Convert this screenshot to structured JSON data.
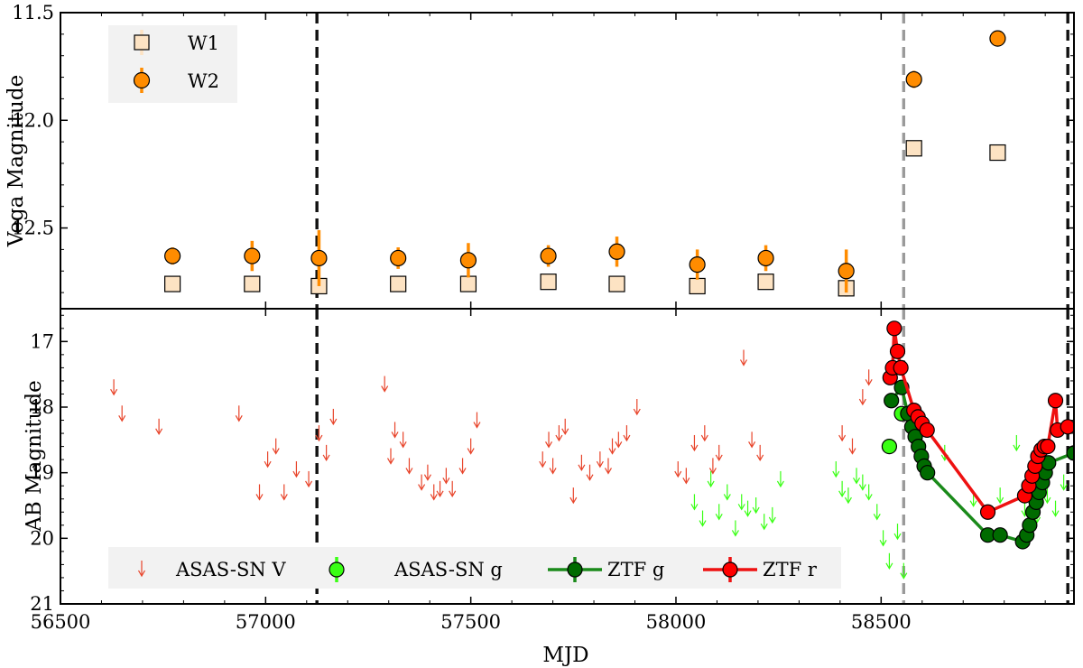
{
  "chart_data": [
    {
      "type": "scatter",
      "panel": "top",
      "ylabel": "Vega Magnitude",
      "xlim": [
        56500,
        58970
      ],
      "ylim": [
        12.875,
        11.5
      ],
      "y_inverted": true,
      "yticks": [
        11.5,
        12.0,
        12.5
      ],
      "ytick_labels": [
        "11.5",
        "12.0",
        "12.5"
      ],
      "legend_position": "top-left",
      "series": [
        {
          "name": "W1",
          "marker": "square",
          "color": "#fde3c3",
          "errcolor": "#fde3c3",
          "points": [
            {
              "x": 56773,
              "y": 12.76,
              "err": 0.02
            },
            {
              "x": 56967,
              "y": 12.76,
              "err": 0.02
            },
            {
              "x": 57130,
              "y": 12.77,
              "err": 0.03
            },
            {
              "x": 57323,
              "y": 12.76,
              "err": 0.03
            },
            {
              "x": 57494,
              "y": 12.76,
              "err": 0.02
            },
            {
              "x": 57689,
              "y": 12.75,
              "err": 0.02
            },
            {
              "x": 57856,
              "y": 12.76,
              "err": 0.03
            },
            {
              "x": 58052,
              "y": 12.77,
              "err": 0.02
            },
            {
              "x": 58219,
              "y": 12.75,
              "err": 0.02
            },
            {
              "x": 58415,
              "y": 12.78,
              "err": 0.04
            },
            {
              "x": 58580,
              "y": 12.13,
              "err": 0.02
            },
            {
              "x": 58784,
              "y": 12.15,
              "err": 0.03
            }
          ]
        },
        {
          "name": "W2",
          "marker": "circle",
          "color": "#ff8c00",
          "errcolor": "#ff8c00",
          "points": [
            {
              "x": 56773,
              "y": 12.63,
              "err": 0.04
            },
            {
              "x": 56967,
              "y": 12.63,
              "err": 0.07
            },
            {
              "x": 57130,
              "y": 12.64,
              "err": 0.13
            },
            {
              "x": 57323,
              "y": 12.64,
              "err": 0.05
            },
            {
              "x": 57494,
              "y": 12.65,
              "err": 0.08
            },
            {
              "x": 57689,
              "y": 12.63,
              "err": 0.05
            },
            {
              "x": 57856,
              "y": 12.61,
              "err": 0.07
            },
            {
              "x": 58052,
              "y": 12.67,
              "err": 0.07
            },
            {
              "x": 58219,
              "y": 12.64,
              "err": 0.06
            },
            {
              "x": 58415,
              "y": 12.7,
              "err": 0.1
            },
            {
              "x": 58580,
              "y": 11.81,
              "err": 0.04
            },
            {
              "x": 58784,
              "y": 11.62,
              "err": 0.02
            }
          ]
        }
      ]
    },
    {
      "type": "scatter",
      "panel": "bottom",
      "xlabel": "MJD",
      "ylabel": "AB Magnitude",
      "xlim": [
        56500,
        58970
      ],
      "ylim": [
        21.0,
        16.5
      ],
      "y_inverted": true,
      "xticks": [
        56500,
        57000,
        57500,
        58000,
        58500
      ],
      "xtick_labels": [
        "56500",
        "57000",
        "57500",
        "58000",
        "58500"
      ],
      "yticks": [
        17,
        18,
        19,
        20,
        21
      ],
      "ytick_labels": [
        "17",
        "18",
        "19",
        "20",
        "21"
      ],
      "legend_position": "bottom",
      "series": [
        {
          "name": "ASAS-SN V",
          "marker": "down-arrow (upper limit)",
          "color": "#e8442a",
          "points": [
            [
              56630,
              17.7
            ],
            [
              56650,
              18.1
            ],
            [
              56740,
              18.3
            ],
            [
              56935,
              18.1
            ],
            [
              56985,
              19.3
            ],
            [
              57005,
              18.8
            ],
            [
              57025,
              18.6
            ],
            [
              57045,
              19.3
            ],
            [
              57075,
              18.95
            ],
            [
              57105,
              19.1
            ],
            [
              57130,
              18.4
            ],
            [
              57148,
              18.7
            ],
            [
              57165,
              18.15
            ],
            [
              57290,
              17.65
            ],
            [
              57305,
              18.75
            ],
            [
              57315,
              18.35
            ],
            [
              57335,
              18.5
            ],
            [
              57350,
              18.9
            ],
            [
              57380,
              19.15
            ],
            [
              57395,
              19.0
            ],
            [
              57410,
              19.3
            ],
            [
              57425,
              19.25
            ],
            [
              57440,
              19.05
            ],
            [
              57455,
              19.25
            ],
            [
              57480,
              18.9
            ],
            [
              57500,
              18.6
            ],
            [
              57515,
              18.2
            ],
            [
              57675,
              18.8
            ],
            [
              57690,
              18.5
            ],
            [
              57700,
              18.9
            ],
            [
              57715,
              18.4
            ],
            [
              57730,
              18.3
            ],
            [
              57750,
              19.35
            ],
            [
              57770,
              18.85
            ],
            [
              57790,
              19.0
            ],
            [
              57815,
              18.8
            ],
            [
              57835,
              18.9
            ],
            [
              57845,
              18.6
            ],
            [
              57860,
              18.5
            ],
            [
              57880,
              18.4
            ],
            [
              57905,
              18.0
            ],
            [
              58005,
              18.95
            ],
            [
              58025,
              19.05
            ],
            [
              58045,
              18.55
            ],
            [
              58070,
              18.4
            ],
            [
              58090,
              18.9
            ],
            [
              58105,
              18.7
            ],
            [
              58165,
              17.25
            ],
            [
              58185,
              18.5
            ],
            [
              58205,
              18.7
            ],
            [
              58405,
              18.4
            ],
            [
              58430,
              18.6
            ],
            [
              58455,
              17.85
            ],
            [
              58470,
              17.55
            ]
          ]
        },
        {
          "name": "ASAS-SN g",
          "marker": "circle + down-arrow upper limits",
          "color": "#39ff14",
          "detections": [
            {
              "x": 58520,
              "y": 18.6
            },
            {
              "x": 58550,
              "y": 18.1
            }
          ],
          "limits": [
            [
              58045,
              19.45
            ],
            [
              58065,
              19.7
            ],
            [
              58085,
              19.1
            ],
            [
              58105,
              19.6
            ],
            [
              58125,
              19.3
            ],
            [
              58145,
              19.85
            ],
            [
              58160,
              19.45
            ],
            [
              58175,
              19.55
            ],
            [
              58195,
              19.5
            ],
            [
              58215,
              19.75
            ],
            [
              58235,
              19.65
            ],
            [
              58255,
              19.1
            ],
            [
              58390,
              18.95
            ],
            [
              58405,
              19.25
            ],
            [
              58420,
              19.35
            ],
            [
              58440,
              19.05
            ],
            [
              58455,
              19.15
            ],
            [
              58470,
              19.3
            ],
            [
              58490,
              19.6
            ],
            [
              58505,
              20.0
            ],
            [
              58520,
              20.35
            ],
            [
              58540,
              19.9
            ],
            [
              58555,
              20.5
            ],
            [
              58655,
              18.7
            ],
            [
              58725,
              19.4
            ],
            [
              58790,
              19.35
            ],
            [
              58830,
              18.55
            ],
            [
              58850,
              19.55
            ],
            [
              58880,
              19.65
            ],
            [
              58905,
              19.35
            ],
            [
              58925,
              19.55
            ],
            [
              58945,
              19.15
            ]
          ]
        },
        {
          "name": "ZTF g",
          "marker": "circle+line",
          "color": "#006b00",
          "linecolor": "#1a8a1a",
          "points": [
            {
              "x": 58525,
              "y": 17.9
            },
            {
              "x": 58550,
              "y": 17.7
            },
            {
              "x": 58565,
              "y": 18.1
            },
            {
              "x": 58575,
              "y": 18.3
            },
            {
              "x": 58583,
              "y": 18.45
            },
            {
              "x": 58591,
              "y": 18.6
            },
            {
              "x": 58598,
              "y": 18.75
            },
            {
              "x": 58605,
              "y": 18.9
            },
            {
              "x": 58613,
              "y": 19.0
            },
            {
              "x": 58760,
              "y": 19.95
            },
            {
              "x": 58790,
              "y": 19.95
            },
            {
              "x": 58845,
              "y": 20.05
            },
            {
              "x": 58855,
              "y": 19.95
            },
            {
              "x": 58862,
              "y": 19.8
            },
            {
              "x": 58870,
              "y": 19.6
            },
            {
              "x": 58878,
              "y": 19.45
            },
            {
              "x": 58885,
              "y": 19.3
            },
            {
              "x": 58893,
              "y": 19.15
            },
            {
              "x": 58900,
              "y": 19.0
            },
            {
              "x": 58908,
              "y": 18.85
            },
            {
              "x": 58970,
              "y": 18.7
            }
          ]
        },
        {
          "name": "ZTF r",
          "marker": "circle+line",
          "color": "#ff0000",
          "linecolor": "#ee1111",
          "points": [
            {
              "x": 58522,
              "y": 17.55
            },
            {
              "x": 58528,
              "y": 17.4
            },
            {
              "x": 58532,
              "y": 16.8
            },
            {
              "x": 58540,
              "y": 17.15
            },
            {
              "x": 58548,
              "y": 17.4
            },
            {
              "x": 58580,
              "y": 18.05
            },
            {
              "x": 58590,
              "y": 18.15
            },
            {
              "x": 58600,
              "y": 18.25
            },
            {
              "x": 58612,
              "y": 18.35
            },
            {
              "x": 58760,
              "y": 19.6
            },
            {
              "x": 58850,
              "y": 19.35
            },
            {
              "x": 58860,
              "y": 19.2
            },
            {
              "x": 58868,
              "y": 19.05
            },
            {
              "x": 58875,
              "y": 18.9
            },
            {
              "x": 58882,
              "y": 18.75
            },
            {
              "x": 58890,
              "y": 18.65
            },
            {
              "x": 58898,
              "y": 18.6
            },
            {
              "x": 58906,
              "y": 18.6
            },
            {
              "x": 58925,
              "y": 17.9
            },
            {
              "x": 58930,
              "y": 18.35
            },
            {
              "x": 58955,
              "y": 18.3
            }
          ]
        }
      ],
      "vertical_lines": [
        {
          "x": 57125,
          "style": "dashed",
          "color": "#111111"
        },
        {
          "x": 58555,
          "style": "dashed",
          "color": "#9a9a9a"
        },
        {
          "x": 58955,
          "style": "dashed",
          "color": "#111111"
        }
      ]
    }
  ]
}
